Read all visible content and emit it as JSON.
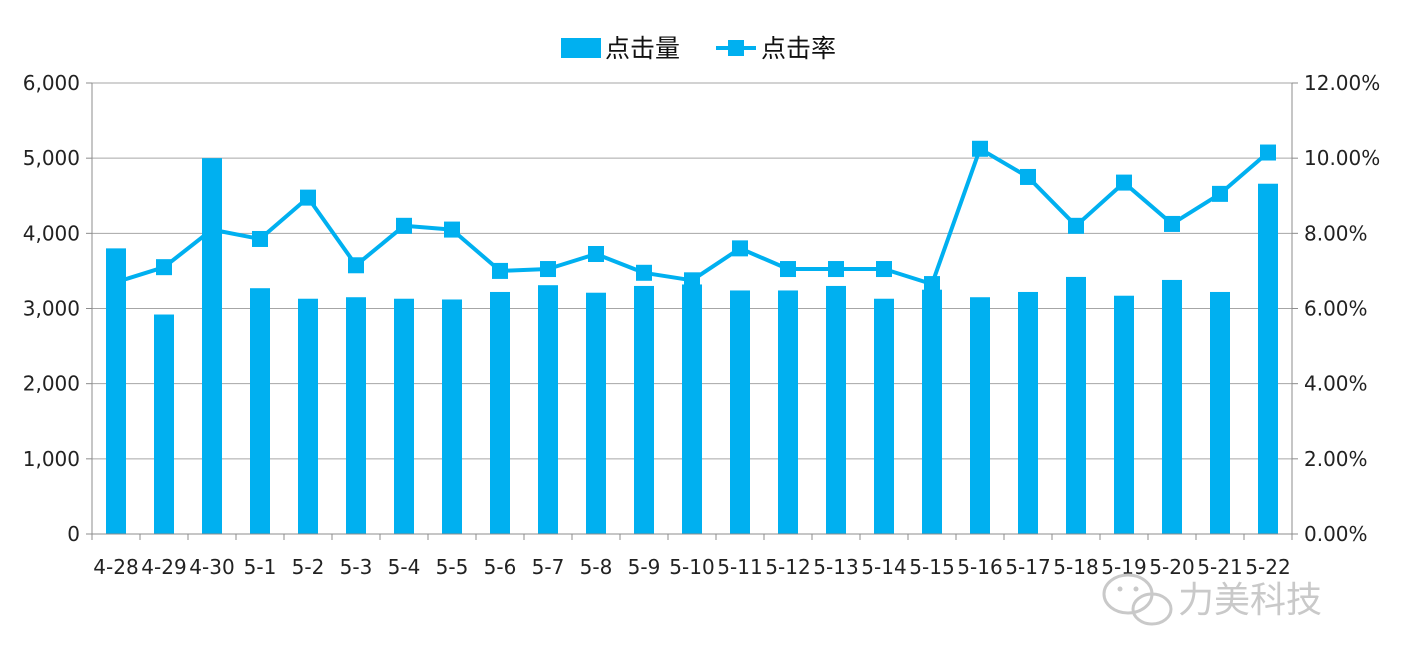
{
  "chart_data": {
    "type": "bar",
    "title": "",
    "xlabel": "",
    "ylabel": "",
    "categories": [
      "4-28",
      "4-29",
      "4-30",
      "5-1",
      "5-2",
      "5-3",
      "5-4",
      "5-5",
      "5-6",
      "5-7",
      "5-8",
      "5-9",
      "5-10",
      "5-11",
      "5-12",
      "5-13",
      "5-14",
      "5-15",
      "5-16",
      "5-17",
      "5-18",
      "5-19",
      "5-20",
      "5-21",
      "5-22"
    ],
    "series": [
      {
        "name": "点击量",
        "type": "bar",
        "axis": "left",
        "values": [
          3800,
          2920,
          5000,
          3270,
          3130,
          3150,
          3130,
          3120,
          3220,
          3310,
          3210,
          3300,
          3320,
          3240,
          3240,
          3300,
          3130,
          3250,
          3150,
          3220,
          3420,
          3170,
          3380,
          3220,
          4660
        ]
      },
      {
        "name": "点击率",
        "type": "line",
        "axis": "right",
        "values": [
          6.7,
          7.1,
          8.1,
          7.85,
          8.95,
          7.15,
          8.2,
          8.1,
          7.0,
          7.05,
          7.45,
          6.95,
          6.75,
          7.6,
          7.05,
          7.05,
          7.05,
          6.65,
          10.25,
          9.5,
          8.2,
          9.35,
          8.25,
          9.05,
          10.15
        ]
      }
    ],
    "y_left": {
      "min": 0,
      "max": 6000,
      "ticks": [
        "0",
        "1,000",
        "2,000",
        "3,000",
        "4,000",
        "5,000",
        "6,000"
      ]
    },
    "y_right": {
      "min": 0,
      "max": 12,
      "ticks": [
        "0.00%",
        "2.00%",
        "4.00%",
        "6.00%",
        "8.00%",
        "10.00%",
        "12.00%"
      ]
    },
    "grid": true,
    "legend_position": "top-center",
    "colors": {
      "series": "#00b0f0",
      "grid": "#a6a6a6",
      "axis": "#8c8c8c"
    }
  },
  "watermark": {
    "text": "力美科技",
    "icon": "wechat-icon"
  }
}
